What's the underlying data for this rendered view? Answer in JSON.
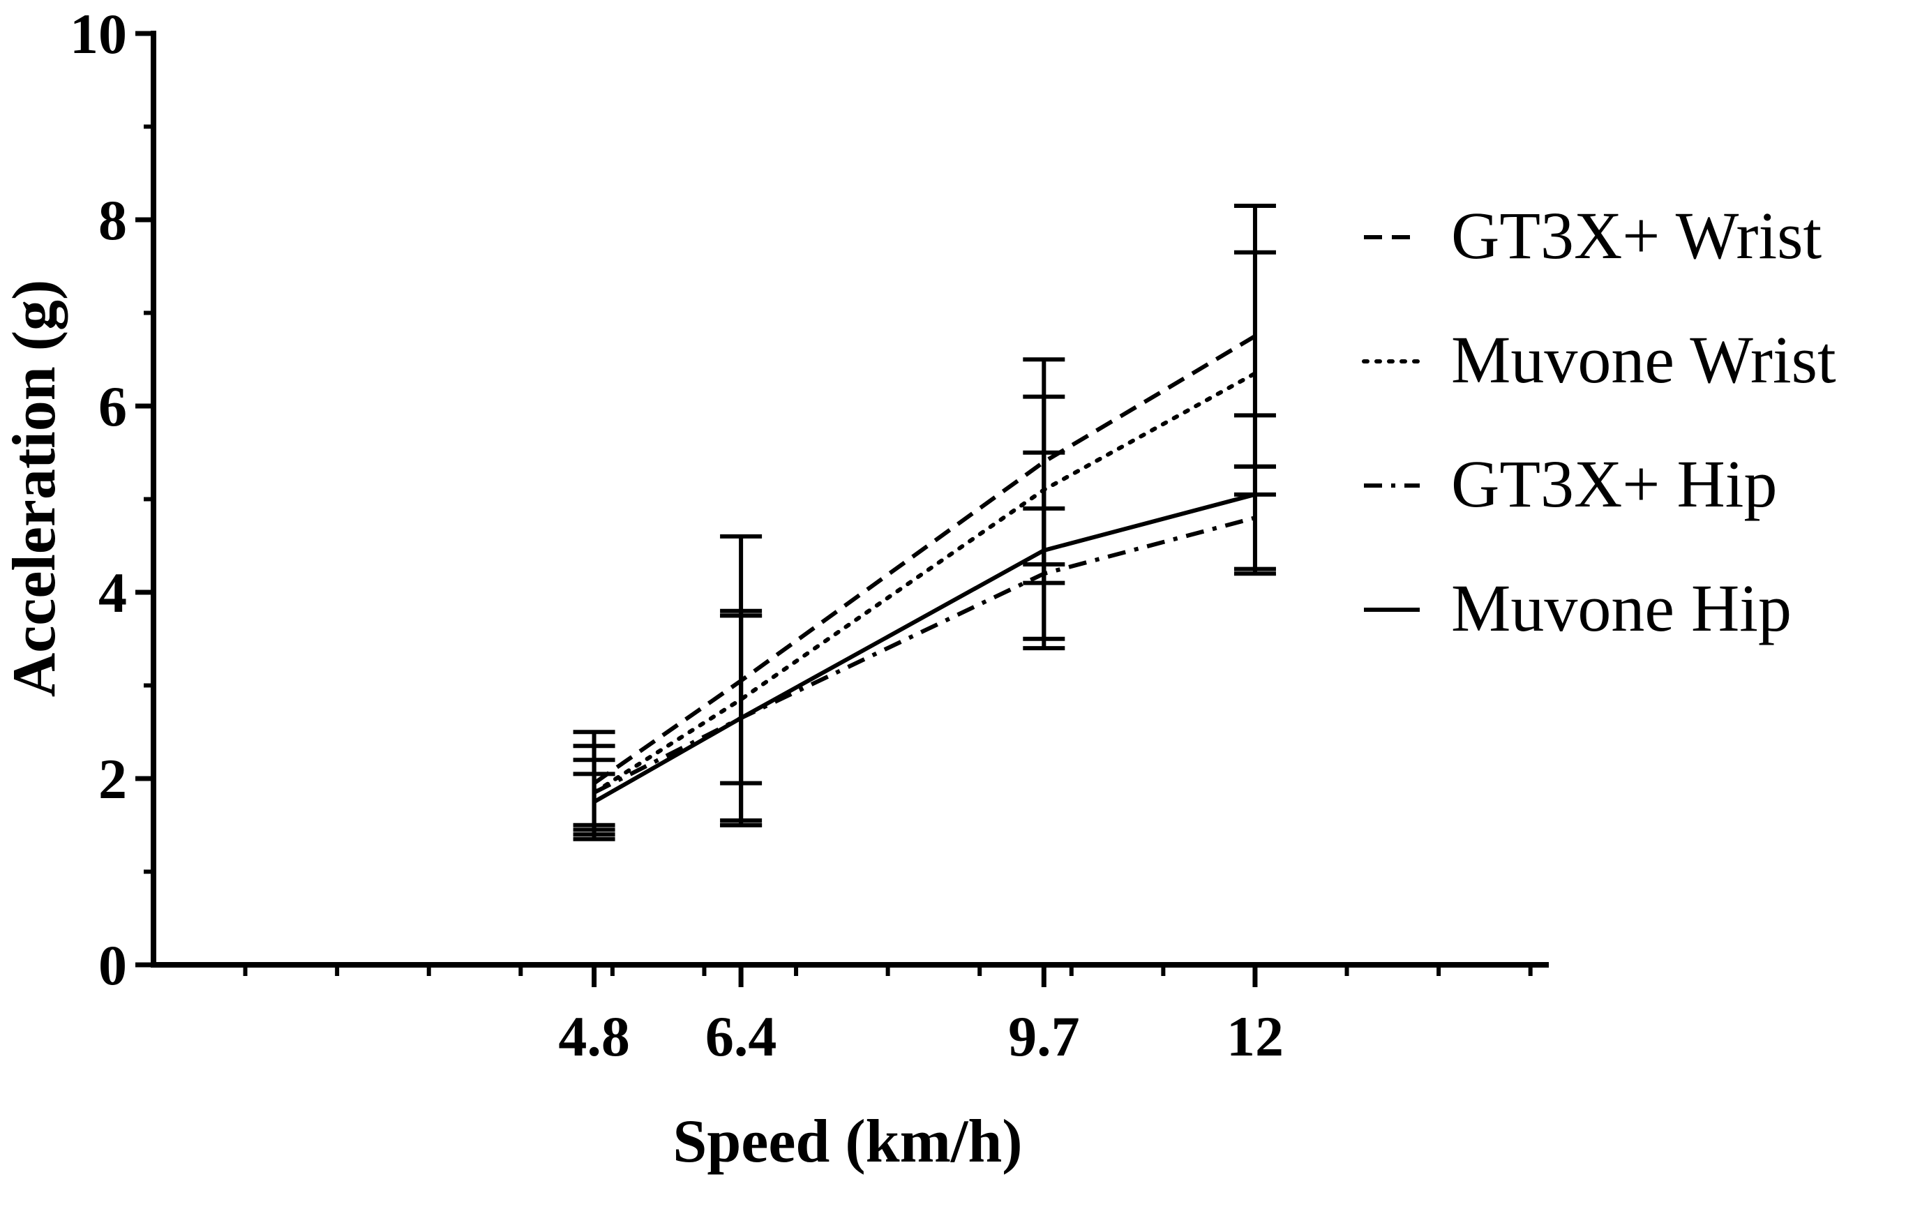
{
  "chart_data": {
    "type": "line",
    "title": "",
    "xlabel": "Speed (km/h)",
    "ylabel": "Acceleration (g)",
    "x": [
      4.8,
      6.4,
      9.7,
      12
    ],
    "x_tick_labels": [
      "4.8",
      "6.4",
      "9.7",
      "12"
    ],
    "xlim": [
      0,
      15.2
    ],
    "ylim": [
      0,
      10
    ],
    "y_ticks": [
      0,
      2,
      4,
      6,
      8,
      10
    ],
    "y_tick_labels": [
      "0",
      "2",
      "4",
      "6",
      "8",
      "10"
    ],
    "grid": false,
    "legend_position": "right",
    "series": [
      {
        "name": "GT3X+ Wrist",
        "dash": "dashed",
        "values": [
          1.95,
          3.05,
          5.4,
          6.75
        ],
        "error": [
          0.55,
          1.55,
          1.1,
          1.4
        ]
      },
      {
        "name": "Muvone Wrist",
        "dash": "dotted",
        "values": [
          1.85,
          2.85,
          5.1,
          6.35
        ],
        "error": [
          0.5,
          0.9,
          1.0,
          1.3
        ]
      },
      {
        "name": "GT3X+ Hip",
        "dash": "dashdot",
        "values": [
          1.85,
          2.65,
          4.2,
          4.8
        ],
        "error": [
          0.35,
          1.1,
          0.7,
          0.55
        ]
      },
      {
        "name": "Muvone Hip",
        "dash": "solid",
        "values": [
          1.75,
          2.65,
          4.45,
          5.05
        ],
        "error": [
          0.3,
          1.15,
          1.05,
          0.85
        ]
      }
    ]
  }
}
